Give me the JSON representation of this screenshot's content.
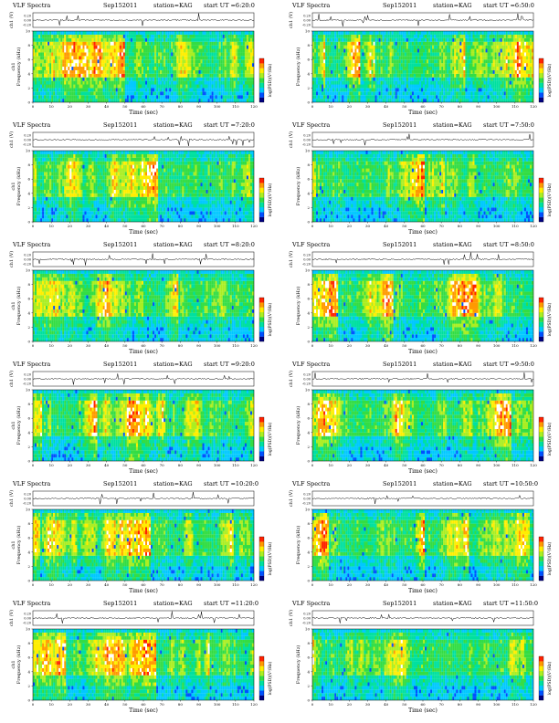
{
  "chart_data": [
    {
      "type": "heatmap",
      "title": "VLF Spectra",
      "date": "Sep152011",
      "station": "station=KAG",
      "start": "start UT =6:20:0",
      "xlabel": "Time (sec)",
      "ylabel_top": "ch1 (V)",
      "ylabel": "Frequency (kHz)",
      "ylabel_prefix": "ch1",
      "cbar_label": "log(PSD)(V²/Hz)",
      "xlim": [
        0,
        120
      ],
      "ylim": [
        0,
        10
      ],
      "xticks": [
        0,
        10,
        20,
        30,
        40,
        50,
        60,
        70,
        80,
        90,
        100,
        110,
        120
      ],
      "yticks": [
        0,
        2,
        4,
        6,
        8,
        10
      ],
      "top_yticks": [
        "0.20",
        "0.00",
        "-0.20"
      ]
    },
    {
      "type": "heatmap",
      "title": "VLF Spectra",
      "date": "Sep152011",
      "station": "station=KAG",
      "start": "start UT =6:50:0",
      "xlabel": "Time (sec)",
      "ylabel_top": "ch1 (V)",
      "ylabel": "Frequency (kHz)",
      "ylabel_prefix": "",
      "cbar_label": "log(PSD)(V²/Hz)",
      "xlim": [
        0,
        120
      ],
      "ylim": [
        0,
        10
      ],
      "xticks": [
        0,
        10,
        20,
        30,
        40,
        50,
        60,
        70,
        80,
        90,
        100,
        110,
        120
      ],
      "yticks": [
        0,
        2,
        4,
        6,
        8,
        10
      ],
      "top_yticks": [
        "0.20",
        "0.00",
        "-0.20"
      ]
    },
    {
      "type": "heatmap",
      "title": "VLF Spectra",
      "date": "Sep152011",
      "station": "station=KAG",
      "start": "start UT =7:20:0",
      "xlabel": "Time (sec)",
      "ylabel_top": "ch1 (V)",
      "ylabel": "Frequency (kHz)",
      "ylabel_prefix": "ch1",
      "cbar_label": "log(PSD)(V²/Hz)",
      "xlim": [
        0,
        120
      ],
      "ylim": [
        0,
        10
      ],
      "xticks": [
        0,
        10,
        20,
        30,
        40,
        50,
        60,
        70,
        80,
        90,
        100,
        110,
        120
      ],
      "yticks": [
        0,
        2,
        4,
        6,
        8,
        10
      ],
      "top_yticks": [
        "0.20",
        "0.00",
        "-0.20"
      ]
    },
    {
      "type": "heatmap",
      "title": "VLF Spectra",
      "date": "Sep152011",
      "station": "station=KAG",
      "start": "start UT =7:50:0",
      "xlabel": "Time (sec)",
      "ylabel_top": "ch1 (V)",
      "ylabel": "Frequency (kHz)",
      "ylabel_prefix": "",
      "cbar_label": "log(PSD)(V²/Hz)",
      "xlim": [
        0,
        120
      ],
      "ylim": [
        0,
        10
      ],
      "xticks": [
        0,
        10,
        20,
        30,
        40,
        50,
        60,
        70,
        80,
        90,
        100,
        110,
        120
      ],
      "yticks": [
        0,
        2,
        4,
        6,
        8,
        10
      ],
      "top_yticks": [
        "0.20",
        "0.00",
        "-0.20"
      ]
    },
    {
      "type": "heatmap",
      "title": "VLF Spectra",
      "date": "Sep152011",
      "station": "station=KAG",
      "start": "start UT =8:20:0",
      "xlabel": "Time (sec)",
      "ylabel_top": "ch1 (V)",
      "ylabel": "Frequency (kHz)",
      "ylabel_prefix": "ch1",
      "cbar_label": "log(PSD)(V²/Hz)",
      "xlim": [
        0,
        120
      ],
      "ylim": [
        0,
        10
      ],
      "xticks": [
        0,
        10,
        20,
        30,
        40,
        50,
        60,
        70,
        80,
        90,
        100,
        110,
        120
      ],
      "yticks": [
        0,
        2,
        4,
        6,
        8,
        10
      ],
      "top_yticks": [
        "0.20",
        "0.00",
        "-0.20"
      ]
    },
    {
      "type": "heatmap",
      "title": "VLF Spectra",
      "date": "Sep152011",
      "station": "station=KAG",
      "start": "start UT =8:50:0",
      "xlabel": "Time (sec)",
      "ylabel_top": "ch1 (V)",
      "ylabel": "Frequency (kHz)",
      "ylabel_prefix": "",
      "cbar_label": "log(PSD)(V²/Hz)",
      "xlim": [
        0,
        120
      ],
      "ylim": [
        0,
        10
      ],
      "xticks": [
        0,
        10,
        20,
        30,
        40,
        50,
        60,
        70,
        80,
        90,
        100,
        110,
        120
      ],
      "yticks": [
        0,
        2,
        4,
        6,
        8,
        10
      ],
      "top_yticks": [
        "0.20",
        "0.00",
        "-0.20"
      ]
    },
    {
      "type": "heatmap",
      "title": "VLF Spectra",
      "date": "Sep152011",
      "station": "station=KAG",
      "start": "start UT =9:20:0",
      "xlabel": "Time (sec)",
      "ylabel_top": "ch1 (V)",
      "ylabel": "Frequency (kHz)",
      "ylabel_prefix": "ch1",
      "cbar_label": "log(PSD)(V²/Hz)",
      "xlim": [
        0,
        120
      ],
      "ylim": [
        0,
        10
      ],
      "xticks": [
        0,
        10,
        20,
        30,
        40,
        50,
        60,
        70,
        80,
        90,
        100,
        110,
        120
      ],
      "yticks": [
        0,
        2,
        4,
        6,
        8,
        10
      ],
      "top_yticks": [
        "0.20",
        "0.00",
        "-0.20"
      ]
    },
    {
      "type": "heatmap",
      "title": "VLF Spectra",
      "date": "Sep152011",
      "station": "station=KAG",
      "start": "start UT =9:50:0",
      "xlabel": "Time (sec)",
      "ylabel_top": "ch1 (V)",
      "ylabel": "Frequency (kHz)",
      "ylabel_prefix": "",
      "cbar_label": "log(PSD)(V²/Hz)",
      "xlim": [
        0,
        120
      ],
      "ylim": [
        0,
        10
      ],
      "xticks": [
        0,
        10,
        20,
        30,
        40,
        50,
        60,
        70,
        80,
        90,
        100,
        110,
        120
      ],
      "yticks": [
        0,
        2,
        4,
        6,
        8,
        10
      ],
      "top_yticks": [
        "0.20",
        "0.00",
        "-0.20"
      ]
    },
    {
      "type": "heatmap",
      "title": "VLF Spectra",
      "date": "Sep152011",
      "station": "station=KAG",
      "start": "start UT =10:20:0",
      "xlabel": "Time (sec)",
      "ylabel_top": "ch1 (V)",
      "ylabel": "Frequency (kHz)",
      "ylabel_prefix": "ch1",
      "cbar_label": "log(PSD)(V²/Hz)",
      "xlim": [
        0,
        120
      ],
      "ylim": [
        0,
        10
      ],
      "xticks": [
        0,
        10,
        20,
        30,
        40,
        50,
        60,
        70,
        80,
        90,
        100,
        110,
        120
      ],
      "yticks": [
        0,
        2,
        4,
        6,
        8,
        10
      ],
      "top_yticks": [
        "0.20",
        "0.00",
        "-0.20"
      ]
    },
    {
      "type": "heatmap",
      "title": "VLF Spectra",
      "date": "Sep152011",
      "station": "station=KAG",
      "start": "start UT =10:50:0",
      "xlabel": "Time (sec)",
      "ylabel_top": "ch1 (V)",
      "ylabel": "Frequency (kHz)",
      "ylabel_prefix": "",
      "cbar_label": "log(PSD)(V²/Hz)",
      "xlim": [
        0,
        120
      ],
      "ylim": [
        0,
        10
      ],
      "xticks": [
        0,
        10,
        20,
        30,
        40,
        50,
        60,
        70,
        80,
        90,
        100,
        110,
        120
      ],
      "yticks": [
        0,
        2,
        4,
        6,
        8,
        10
      ],
      "top_yticks": [
        "0.20",
        "0.00",
        "-0.20"
      ]
    },
    {
      "type": "heatmap",
      "title": "VLF Spectra",
      "date": "Sep152011",
      "station": "station=KAG",
      "start": "start UT =11:20:0",
      "xlabel": "Time (sec)",
      "ylabel_top": "ch1 (V)",
      "ylabel": "Frequency (kHz)",
      "ylabel_prefix": "ch1",
      "cbar_label": "log(PSD)(V²/Hz)",
      "xlim": [
        0,
        120
      ],
      "ylim": [
        0,
        10
      ],
      "xticks": [
        0,
        10,
        20,
        30,
        40,
        50,
        60,
        70,
        80,
        90,
        100,
        110,
        120
      ],
      "yticks": [
        0,
        2,
        4,
        6,
        8,
        10
      ],
      "top_yticks": [
        "0.20",
        "0.00",
        "-0.20"
      ]
    },
    {
      "type": "heatmap",
      "title": "VLF Spectra",
      "date": "Sep152011",
      "station": "station=KAG",
      "start": "start UT =11:50:0",
      "xlabel": "Time (sec)",
      "ylabel_top": "ch1 (V)",
      "ylabel": "Frequency (kHz)",
      "ylabel_prefix": "",
      "cbar_label": "log(PSD)(V²/Hz)",
      "xlim": [
        0,
        120
      ],
      "ylim": [
        0,
        10
      ],
      "xticks": [
        0,
        10,
        20,
        30,
        40,
        50,
        60,
        70,
        80,
        90,
        100,
        110,
        120
      ],
      "yticks": [
        0,
        2,
        4,
        6,
        8,
        10
      ],
      "top_yticks": [
        "0.20",
        "0.00",
        "-0.20"
      ]
    }
  ],
  "colorscale": [
    "#000080",
    "#0050ff",
    "#00c8ff",
    "#00e0a0",
    "#33dd44",
    "#aaee22",
    "#ffee00",
    "#ff9900",
    "#ff2200",
    "#ffffff"
  ]
}
